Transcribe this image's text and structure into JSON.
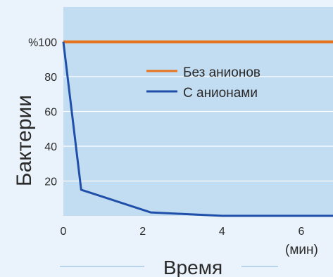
{
  "chart_data": {
    "type": "line",
    "xlabel": "Время",
    "xunit": "(мин)",
    "ylabel": "Бактерии",
    "yunit": "%",
    "xlim": [
      0,
      6.8
    ],
    "ylim": [
      0,
      120
    ],
    "x_ticks": [
      0,
      2,
      4,
      6
    ],
    "y_ticks": [
      100,
      80,
      60,
      40,
      20
    ],
    "grid": true,
    "legend_position": "upper-middle",
    "series": [
      {
        "name": "Без анионов",
        "color": "#e8731f",
        "x": [
          0,
          6.8
        ],
        "y": [
          100,
          100
        ]
      },
      {
        "name": "С анионами",
        "color": "#1f4fa8",
        "x": [
          0,
          0.45,
          2.2,
          4.0,
          6.8
        ],
        "y": [
          100,
          15,
          2,
          0,
          0
        ]
      }
    ]
  },
  "colors": {
    "plot_bg": "#c2dcf1",
    "frame_bg": "#eaf3fb",
    "gridline": "#ffffff",
    "text": "#2a2a2a"
  }
}
